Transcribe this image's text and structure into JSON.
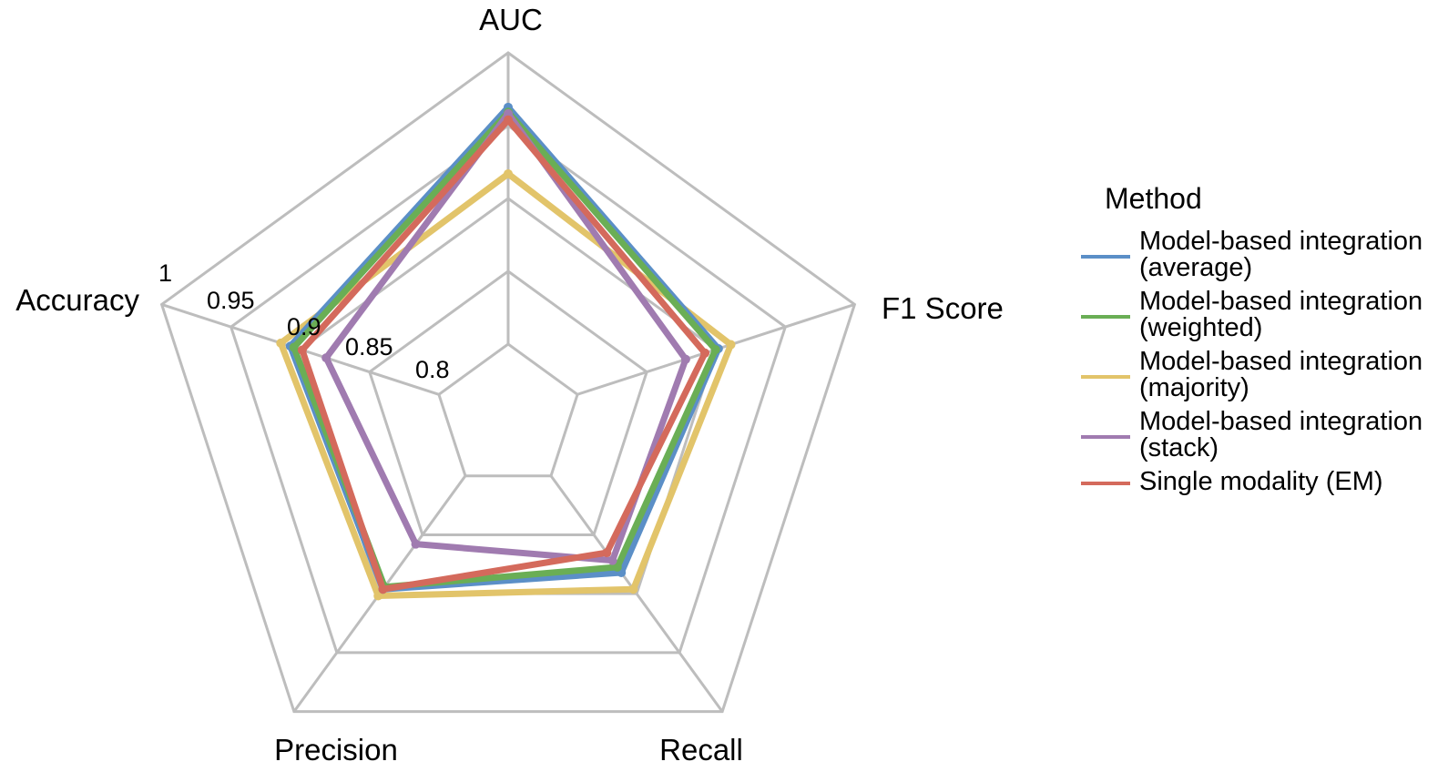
{
  "chart_data": {
    "type": "radar",
    "axes": [
      "AUC",
      "F1 Score",
      "Recall",
      "Precision",
      "Accuracy"
    ],
    "ticks": [
      "1",
      "0.95",
      "0.9",
      "0.85",
      "0.8"
    ],
    "range": [
      0.75,
      1.0
    ],
    "grid": true,
    "legend": {
      "title": "Method",
      "placement": "right"
    },
    "series": [
      {
        "name": "Model-based integration (average)",
        "color": "#5b8fc7",
        "values": [
          0.9626,
          0.9017,
          0.8821,
          0.8962,
          0.9072
        ]
      },
      {
        "name": "Model-based integration (weighted)",
        "color": "#6aae55",
        "values": [
          0.9592,
          0.8996,
          0.8774,
          0.8943,
          0.9046
        ]
      },
      {
        "name": "Model-based integration (majority)",
        "color": "#e2c46a",
        "values": [
          0.9169,
          0.9107,
          0.8962,
          0.9018,
          0.9141
        ]
      },
      {
        "name": "Model-based integration (stack)",
        "color": "#a07bb0",
        "values": [
          0.9582,
          0.8781,
          0.8718,
          0.8579,
          0.8813
        ]
      },
      {
        "name": "Single modality (EM)",
        "color": "#d46a5c",
        "values": [
          0.9539,
          0.892,
          0.8652,
          0.8962,
          0.8986
        ]
      }
    ]
  }
}
